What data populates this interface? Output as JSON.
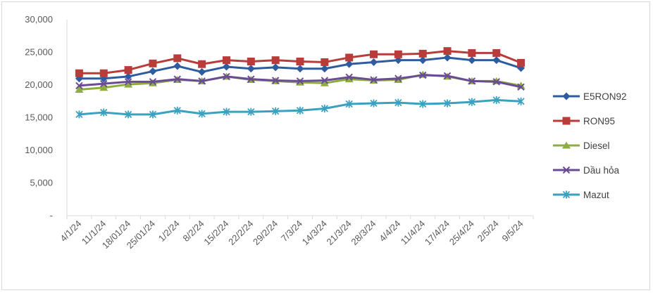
{
  "chart_data": {
    "type": "line",
    "title": "",
    "xlabel": "",
    "ylabel": "",
    "ylim": [
      0,
      30000
    ],
    "y_ticks": [
      0,
      5000,
      10000,
      15000,
      20000,
      25000,
      30000
    ],
    "y_tick_labels": [
      "-",
      "5,000",
      "10,000",
      "15,000",
      "20,000",
      "25,000",
      "30,000"
    ],
    "categories": [
      "4/1/24",
      "11/1/24",
      "18/01/24",
      "25/01/24",
      "1/2/24",
      "8/2/24",
      "15/2/24",
      "22/2/24",
      "29/2/24",
      "7/3/24",
      "14/3/24",
      "21/3/24",
      "28/3/24",
      "4/4/24",
      "11/4/24",
      "17/4/24",
      "25/4/24",
      "2/5/24",
      "9/5/24"
    ],
    "legend_position": "right",
    "grid": false,
    "series": [
      {
        "name": "E5RON92",
        "color": "#2e5c9e",
        "marker": "diamond",
        "values": [
          21000,
          21000,
          21300,
          22100,
          22900,
          22000,
          22800,
          22500,
          22700,
          22500,
          22500,
          23200,
          23500,
          23800,
          23800,
          24200,
          23800,
          23800,
          22600
        ]
      },
      {
        "name": "RON95",
        "color": "#b83c3a",
        "marker": "square",
        "values": [
          21800,
          21800,
          22300,
          23300,
          24100,
          23200,
          23800,
          23600,
          23800,
          23600,
          23500,
          24200,
          24700,
          24700,
          24800,
          25200,
          24900,
          24900,
          23400
        ]
      },
      {
        "name": "Diesel",
        "color": "#8dad3f",
        "marker": "triangle",
        "values": [
          19300,
          19600,
          20100,
          20300,
          20800,
          20600,
          21300,
          20800,
          20600,
          20400,
          20300,
          20900,
          20700,
          20800,
          21600,
          21300,
          20600,
          20600,
          19900
        ]
      },
      {
        "name": "Dầu hỏa",
        "color": "#6a4b95",
        "marker": "x",
        "values": [
          19900,
          20200,
          20500,
          20500,
          20900,
          20600,
          21300,
          20900,
          20700,
          20600,
          20700,
          21200,
          20800,
          21000,
          21500,
          21400,
          20600,
          20500,
          19700
        ]
      },
      {
        "name": "Mazut",
        "color": "#3aa1c0",
        "marker": "star",
        "values": [
          15500,
          15800,
          15500,
          15500,
          16100,
          15600,
          15900,
          15900,
          16000,
          16100,
          16400,
          17100,
          17200,
          17300,
          17100,
          17200,
          17400,
          17700,
          17500
        ]
      }
    ]
  }
}
